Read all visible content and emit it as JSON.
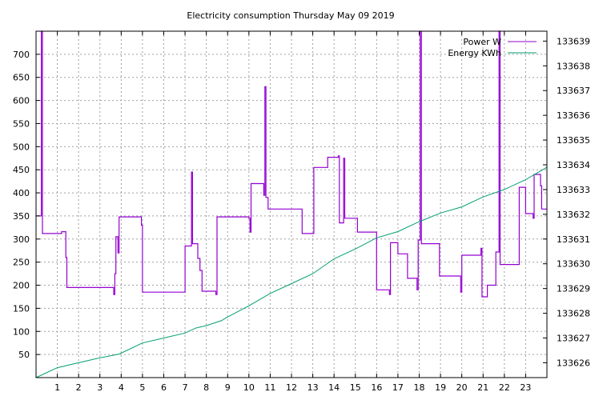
{
  "chart_data": {
    "type": "line",
    "title": "Electricity consumption Thursday May 09 2019",
    "xlabel": "",
    "ylabel": "",
    "y2label": "",
    "grid": true,
    "legend_position": "top-right",
    "colors": {
      "power": "#9400d3",
      "energy": "#009e73"
    },
    "xlim": [
      0,
      24
    ],
    "ylim": [
      0,
      750
    ],
    "y2lim": [
      133625.4,
      133639.4
    ],
    "xticks": [
      1,
      2,
      3,
      4,
      5,
      6,
      7,
      8,
      9,
      10,
      11,
      12,
      13,
      14,
      15,
      16,
      17,
      18,
      19,
      20,
      21,
      22,
      23
    ],
    "yticks": [
      50,
      100,
      150,
      200,
      250,
      300,
      350,
      400,
      450,
      500,
      550,
      600,
      650,
      700
    ],
    "y2ticks": [
      133626,
      133627,
      133628,
      133629,
      133630,
      133631,
      133632,
      133633,
      133634,
      133635,
      133636,
      133637,
      133638,
      133639
    ],
    "series": [
      {
        "name": "Power W",
        "axis": "y1",
        "step": true,
        "points": [
          [
            0,
            350
          ],
          [
            0.25,
            350
          ],
          [
            0.25,
            750
          ],
          [
            0.3,
            750
          ],
          [
            0.3,
            312
          ],
          [
            1.2,
            312
          ],
          [
            1.2,
            316
          ],
          [
            1.4,
            316
          ],
          [
            1.4,
            260
          ],
          [
            1.45,
            260
          ],
          [
            1.45,
            195
          ],
          [
            3.65,
            195
          ],
          [
            3.65,
            180
          ],
          [
            3.7,
            180
          ],
          [
            3.7,
            225
          ],
          [
            3.75,
            225
          ],
          [
            3.75,
            305
          ],
          [
            3.85,
            305
          ],
          [
            3.85,
            270
          ],
          [
            3.9,
            270
          ],
          [
            3.9,
            348
          ],
          [
            4.95,
            348
          ],
          [
            4.95,
            330
          ],
          [
            5.0,
            330
          ],
          [
            5.0,
            185
          ],
          [
            7.0,
            185
          ],
          [
            7.0,
            285
          ],
          [
            7.3,
            285
          ],
          [
            7.3,
            445
          ],
          [
            7.35,
            445
          ],
          [
            7.35,
            290
          ],
          [
            7.6,
            290
          ],
          [
            7.6,
            258
          ],
          [
            7.7,
            258
          ],
          [
            7.7,
            232
          ],
          [
            7.8,
            232
          ],
          [
            7.8,
            187
          ],
          [
            8.45,
            187
          ],
          [
            8.45,
            180
          ],
          [
            8.5,
            180
          ],
          [
            8.5,
            348
          ],
          [
            10.0,
            348
          ],
          [
            10.0,
            345
          ],
          [
            10.05,
            345
          ],
          [
            10.05,
            315
          ],
          [
            10.1,
            315
          ],
          [
            10.1,
            420
          ],
          [
            10.7,
            420
          ],
          [
            10.7,
            395
          ],
          [
            10.75,
            395
          ],
          [
            10.75,
            630
          ],
          [
            10.8,
            630
          ],
          [
            10.8,
            390
          ],
          [
            10.9,
            390
          ],
          [
            10.9,
            365
          ],
          [
            12.5,
            365
          ],
          [
            12.5,
            312
          ],
          [
            13.05,
            312
          ],
          [
            13.05,
            455
          ],
          [
            13.7,
            455
          ],
          [
            13.7,
            477
          ],
          [
            14.2,
            477
          ],
          [
            14.2,
            480
          ],
          [
            14.25,
            480
          ],
          [
            14.25,
            335
          ],
          [
            14.45,
            335
          ],
          [
            14.45,
            475
          ],
          [
            14.5,
            475
          ],
          [
            14.5,
            345
          ],
          [
            15.1,
            345
          ],
          [
            15.1,
            315
          ],
          [
            16.0,
            315
          ],
          [
            16.0,
            190
          ],
          [
            16.6,
            190
          ],
          [
            16.6,
            180
          ],
          [
            16.65,
            180
          ],
          [
            16.65,
            292
          ],
          [
            17.0,
            292
          ],
          [
            17.0,
            268
          ],
          [
            17.45,
            268
          ],
          [
            17.45,
            215
          ],
          [
            17.9,
            215
          ],
          [
            17.9,
            190
          ],
          [
            17.95,
            190
          ],
          [
            17.95,
            298
          ],
          [
            18.05,
            298
          ],
          [
            18.05,
            750
          ],
          [
            18.1,
            750
          ],
          [
            18.1,
            290
          ],
          [
            18.95,
            290
          ],
          [
            18.95,
            220
          ],
          [
            19.95,
            220
          ],
          [
            19.95,
            185
          ],
          [
            20.0,
            185
          ],
          [
            20.0,
            265
          ],
          [
            20.9,
            265
          ],
          [
            20.9,
            280
          ],
          [
            20.95,
            280
          ],
          [
            20.95,
            175
          ],
          [
            21.2,
            175
          ],
          [
            21.2,
            200
          ],
          [
            21.6,
            200
          ],
          [
            21.6,
            272
          ],
          [
            21.75,
            272
          ],
          [
            21.75,
            750
          ],
          [
            21.8,
            750
          ],
          [
            21.8,
            245
          ],
          [
            22.7,
            245
          ],
          [
            22.7,
            412
          ],
          [
            23.0,
            412
          ],
          [
            23.0,
            355
          ],
          [
            23.35,
            355
          ],
          [
            23.35,
            345
          ],
          [
            23.4,
            345
          ],
          [
            23.4,
            440
          ],
          [
            23.7,
            440
          ],
          [
            23.7,
            415
          ],
          [
            23.75,
            415
          ],
          [
            23.75,
            365
          ],
          [
            24.0,
            365
          ]
        ]
      },
      {
        "name": "Energy KWh",
        "axis": "y2",
        "step": false,
        "points": [
          [
            0,
            133625.4
          ],
          [
            1,
            133625.8
          ],
          [
            2,
            133626.0
          ],
          [
            3,
            133626.2
          ],
          [
            3.9,
            133626.35
          ],
          [
            5,
            133626.8
          ],
          [
            6,
            133627.0
          ],
          [
            7,
            133627.2
          ],
          [
            7.5,
            133627.4
          ],
          [
            8,
            133627.5
          ],
          [
            8.7,
            133627.7
          ],
          [
            9,
            133627.85
          ],
          [
            10,
            133628.3
          ],
          [
            11,
            133628.8
          ],
          [
            12,
            133629.2
          ],
          [
            13,
            133629.6
          ],
          [
            14,
            133630.2
          ],
          [
            15,
            133630.6
          ],
          [
            16,
            133631.05
          ],
          [
            17,
            133631.3
          ],
          [
            18,
            133631.7
          ],
          [
            19,
            133632.05
          ],
          [
            20,
            133632.3
          ],
          [
            21,
            133632.7
          ],
          [
            22,
            133633.0
          ],
          [
            23,
            133633.4
          ],
          [
            24,
            133633.9
          ]
        ]
      }
    ]
  }
}
